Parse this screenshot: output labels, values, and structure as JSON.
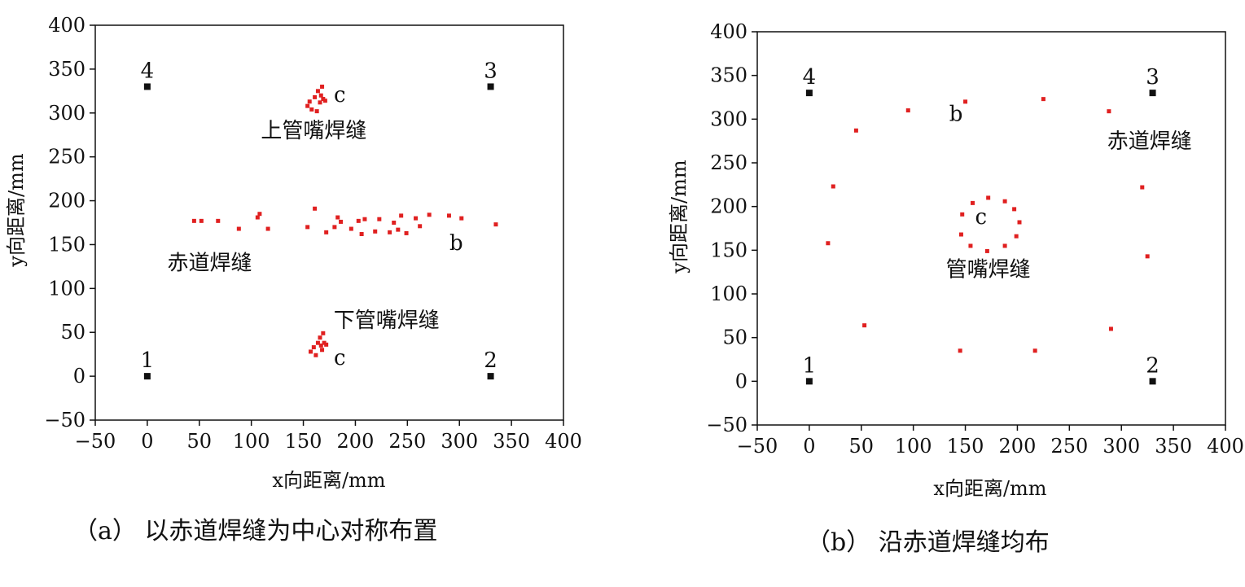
{
  "panels": [
    {
      "id": "a",
      "caption": "（a） 以赤道焊缝为中心对称布置",
      "chart_data": {
        "type": "scatter",
        "xlabel": "x向距离/mm",
        "ylabel": "y向距离/mm",
        "xlim": [
          -50,
          400
        ],
        "ylim": [
          -50,
          400
        ],
        "xticks": [
          -50,
          0,
          50,
          100,
          150,
          200,
          250,
          300,
          350,
          400
        ],
        "yticks": [
          -50,
          0,
          50,
          100,
          150,
          200,
          250,
          300,
          350,
          400
        ],
        "grid": false,
        "sensors": [
          {
            "label": "1",
            "x": 0,
            "y": 0
          },
          {
            "label": "2",
            "x": 330,
            "y": 0
          },
          {
            "label": "3",
            "x": 330,
            "y": 330
          },
          {
            "label": "4",
            "x": 0,
            "y": 330
          }
        ],
        "sensor_color": "#111111",
        "point_color": "#e02020",
        "points": [
          {
            "x": 45,
            "y": 177
          },
          {
            "x": 52,
            "y": 177
          },
          {
            "x": 68,
            "y": 177
          },
          {
            "x": 88,
            "y": 168
          },
          {
            "x": 106,
            "y": 181
          },
          {
            "x": 108,
            "y": 185
          },
          {
            "x": 116,
            "y": 168
          },
          {
            "x": 154,
            "y": 170
          },
          {
            "x": 161,
            "y": 191
          },
          {
            "x": 172,
            "y": 164
          },
          {
            "x": 180,
            "y": 170
          },
          {
            "x": 183,
            "y": 181
          },
          {
            "x": 186,
            "y": 176
          },
          {
            "x": 196,
            "y": 168
          },
          {
            "x": 203,
            "y": 177
          },
          {
            "x": 206,
            "y": 162
          },
          {
            "x": 209,
            "y": 179
          },
          {
            "x": 219,
            "y": 165
          },
          {
            "x": 223,
            "y": 179
          },
          {
            "x": 233,
            "y": 164
          },
          {
            "x": 237,
            "y": 175
          },
          {
            "x": 241,
            "y": 167
          },
          {
            "x": 244,
            "y": 183
          },
          {
            "x": 249,
            "y": 163
          },
          {
            "x": 258,
            "y": 180
          },
          {
            "x": 262,
            "y": 171
          },
          {
            "x": 271,
            "y": 184
          },
          {
            "x": 290,
            "y": 183
          },
          {
            "x": 302,
            "y": 180
          },
          {
            "x": 335,
            "y": 173
          },
          {
            "x": 154,
            "y": 308
          },
          {
            "x": 156,
            "y": 313
          },
          {
            "x": 158,
            "y": 304
          },
          {
            "x": 161,
            "y": 318
          },
          {
            "x": 163,
            "y": 302
          },
          {
            "x": 164,
            "y": 325
          },
          {
            "x": 166,
            "y": 312
          },
          {
            "x": 167,
            "y": 320
          },
          {
            "x": 168,
            "y": 330
          },
          {
            "x": 169,
            "y": 316
          },
          {
            "x": 171,
            "y": 314
          },
          {
            "x": 157,
            "y": 28
          },
          {
            "x": 160,
            "y": 33
          },
          {
            "x": 162,
            "y": 24
          },
          {
            "x": 164,
            "y": 38
          },
          {
            "x": 166,
            "y": 44
          },
          {
            "x": 167,
            "y": 35
          },
          {
            "x": 169,
            "y": 49
          },
          {
            "x": 170,
            "y": 38
          },
          {
            "x": 172,
            "y": 36
          },
          {
            "x": 168,
            "y": 30
          }
        ],
        "annotations": [
          {
            "text": "上管嘴焊缝",
            "x": 160,
            "y": 272
          },
          {
            "text": "c",
            "x": 185,
            "y": 313
          },
          {
            "text": "赤道焊缝",
            "x": 60,
            "y": 121
          },
          {
            "text": "b",
            "x": 297,
            "y": 144
          },
          {
            "text": "下管嘴焊缝",
            "x": 230,
            "y": 56
          },
          {
            "text": "c",
            "x": 185,
            "y": 13
          }
        ]
      }
    },
    {
      "id": "b",
      "caption": "（b） 沿赤道焊缝均布",
      "chart_data": {
        "type": "scatter",
        "xlabel": "x向距离/mm",
        "ylabel": "y向距离/mm",
        "xlim": [
          -50,
          400
        ],
        "ylim": [
          -50,
          400
        ],
        "xticks": [
          -50,
          0,
          50,
          100,
          150,
          200,
          250,
          300,
          350,
          400
        ],
        "yticks": [
          -50,
          0,
          50,
          100,
          150,
          200,
          250,
          300,
          350,
          400
        ],
        "grid": false,
        "sensors": [
          {
            "label": "1",
            "x": 0,
            "y": 0
          },
          {
            "label": "2",
            "x": 330,
            "y": 0
          },
          {
            "label": "3",
            "x": 330,
            "y": 330
          },
          {
            "label": "4",
            "x": 0,
            "y": 330
          }
        ],
        "sensor_color": "#111111",
        "point_color": "#e02020",
        "points": [
          {
            "x": 150,
            "y": 320
          },
          {
            "x": 225,
            "y": 323
          },
          {
            "x": 95,
            "y": 310
          },
          {
            "x": 288,
            "y": 309
          },
          {
            "x": 45,
            "y": 287
          },
          {
            "x": 23,
            "y": 223
          },
          {
            "x": 320,
            "y": 222
          },
          {
            "x": 18,
            "y": 158
          },
          {
            "x": 325,
            "y": 143
          },
          {
            "x": 53,
            "y": 64
          },
          {
            "x": 290,
            "y": 60
          },
          {
            "x": 145,
            "y": 35
          },
          {
            "x": 217,
            "y": 35
          },
          {
            "x": 157,
            "y": 204
          },
          {
            "x": 172,
            "y": 210
          },
          {
            "x": 188,
            "y": 206
          },
          {
            "x": 197,
            "y": 197
          },
          {
            "x": 202,
            "y": 182
          },
          {
            "x": 199,
            "y": 166
          },
          {
            "x": 188,
            "y": 155
          },
          {
            "x": 171,
            "y": 149
          },
          {
            "x": 155,
            "y": 155
          },
          {
            "x": 146,
            "y": 168
          },
          {
            "x": 147,
            "y": 191
          }
        ],
        "annotations": [
          {
            "text": "b",
            "x": 141,
            "y": 298
          },
          {
            "text": "赤道焊缝",
            "x": 327,
            "y": 267
          },
          {
            "text": "c",
            "x": 165,
            "y": 180
          },
          {
            "text": "管嘴焊缝",
            "x": 172,
            "y": 120
          }
        ]
      }
    }
  ]
}
